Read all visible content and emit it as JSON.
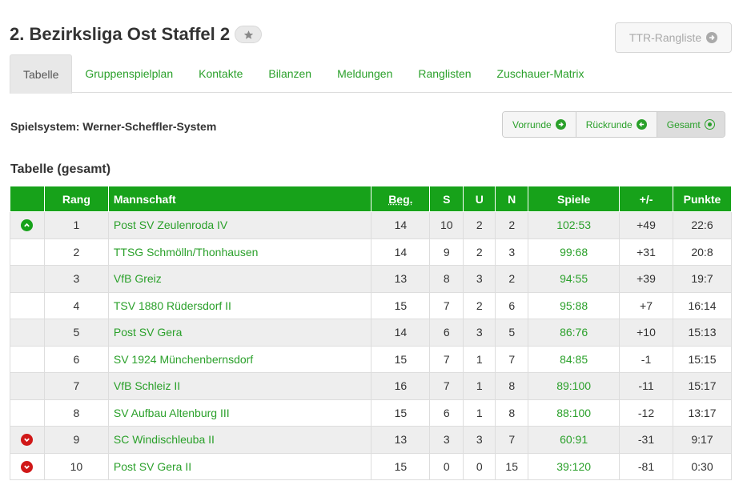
{
  "header": {
    "title": "2. Bezirksliga Ost Staffel 2",
    "star_icon": "star-icon",
    "ttr_button": {
      "label": "TTR-Rangliste",
      "icon": "arrow-right-circle-icon"
    }
  },
  "tabs": [
    {
      "label": "Tabelle",
      "active": true
    },
    {
      "label": "Gruppenspielplan",
      "active": false
    },
    {
      "label": "Kontakte",
      "active": false
    },
    {
      "label": "Bilanzen",
      "active": false
    },
    {
      "label": "Meldungen",
      "active": false
    },
    {
      "label": "Ranglisten",
      "active": false
    },
    {
      "label": "Zuschauer-Matrix",
      "active": false
    }
  ],
  "spielsystem": "Spielsystem: Werner-Scheffler-System",
  "round_buttons": [
    {
      "label": "Vorrunde",
      "icon": "arrow-right-circle-icon",
      "active": false
    },
    {
      "label": "Rückrunde",
      "icon": "arrow-left-circle-icon",
      "active": false
    },
    {
      "label": "Gesamt",
      "icon": "dot-circle-icon",
      "active": true
    }
  ],
  "section_title": "Tabelle (gesamt)",
  "table": {
    "columns": [
      "",
      "Rang",
      "Mannschaft",
      "Beg.",
      "S",
      "U",
      "N",
      "Spiele",
      "+/-",
      "Punkte"
    ],
    "rows": [
      {
        "status": "up",
        "rang": "1",
        "team": "Post SV Zeulenroda IV",
        "beg": "14",
        "s": "10",
        "u": "2",
        "n": "2",
        "spiele": "102:53",
        "diff": "+49",
        "punkte": "22:6"
      },
      {
        "status": "",
        "rang": "2",
        "team": "TTSG Schmölln/Thonhausen",
        "beg": "14",
        "s": "9",
        "u": "2",
        "n": "3",
        "spiele": "99:68",
        "diff": "+31",
        "punkte": "20:8"
      },
      {
        "status": "",
        "rang": "3",
        "team": "VfB Greiz",
        "beg": "13",
        "s": "8",
        "u": "3",
        "n": "2",
        "spiele": "94:55",
        "diff": "+39",
        "punkte": "19:7"
      },
      {
        "status": "",
        "rang": "4",
        "team": "TSV 1880 Rüdersdorf II",
        "beg": "15",
        "s": "7",
        "u": "2",
        "n": "6",
        "spiele": "95:88",
        "diff": "+7",
        "punkte": "16:14"
      },
      {
        "status": "",
        "rang": "5",
        "team": "Post SV Gera",
        "beg": "14",
        "s": "6",
        "u": "3",
        "n": "5",
        "spiele": "86:76",
        "diff": "+10",
        "punkte": "15:13"
      },
      {
        "status": "",
        "rang": "6",
        "team": "SV 1924 Münchenbernsdorf",
        "beg": "15",
        "s": "7",
        "u": "1",
        "n": "7",
        "spiele": "84:85",
        "diff": "-1",
        "punkte": "15:15"
      },
      {
        "status": "",
        "rang": "7",
        "team": "VfB Schleiz II",
        "beg": "16",
        "s": "7",
        "u": "1",
        "n": "8",
        "spiele": "89:100",
        "diff": "-11",
        "punkte": "15:17"
      },
      {
        "status": "",
        "rang": "8",
        "team": "SV Aufbau Altenburg III",
        "beg": "15",
        "s": "6",
        "u": "1",
        "n": "8",
        "spiele": "88:100",
        "diff": "-12",
        "punkte": "13:17"
      },
      {
        "status": "down",
        "rang": "9",
        "team": "SC Windischleuba II",
        "beg": "13",
        "s": "3",
        "u": "3",
        "n": "7",
        "spiele": "60:91",
        "diff": "-31",
        "punkte": "9:17"
      },
      {
        "status": "down",
        "rang": "10",
        "team": "Post SV Gera II",
        "beg": "15",
        "s": "0",
        "u": "0",
        "n": "15",
        "spiele": "39:120",
        "diff": "-81",
        "punkte": "0:30"
      }
    ]
  },
  "colors": {
    "accent_green": "#2aa02a",
    "header_green": "#17a21a",
    "relegation_red": "#d01818"
  }
}
